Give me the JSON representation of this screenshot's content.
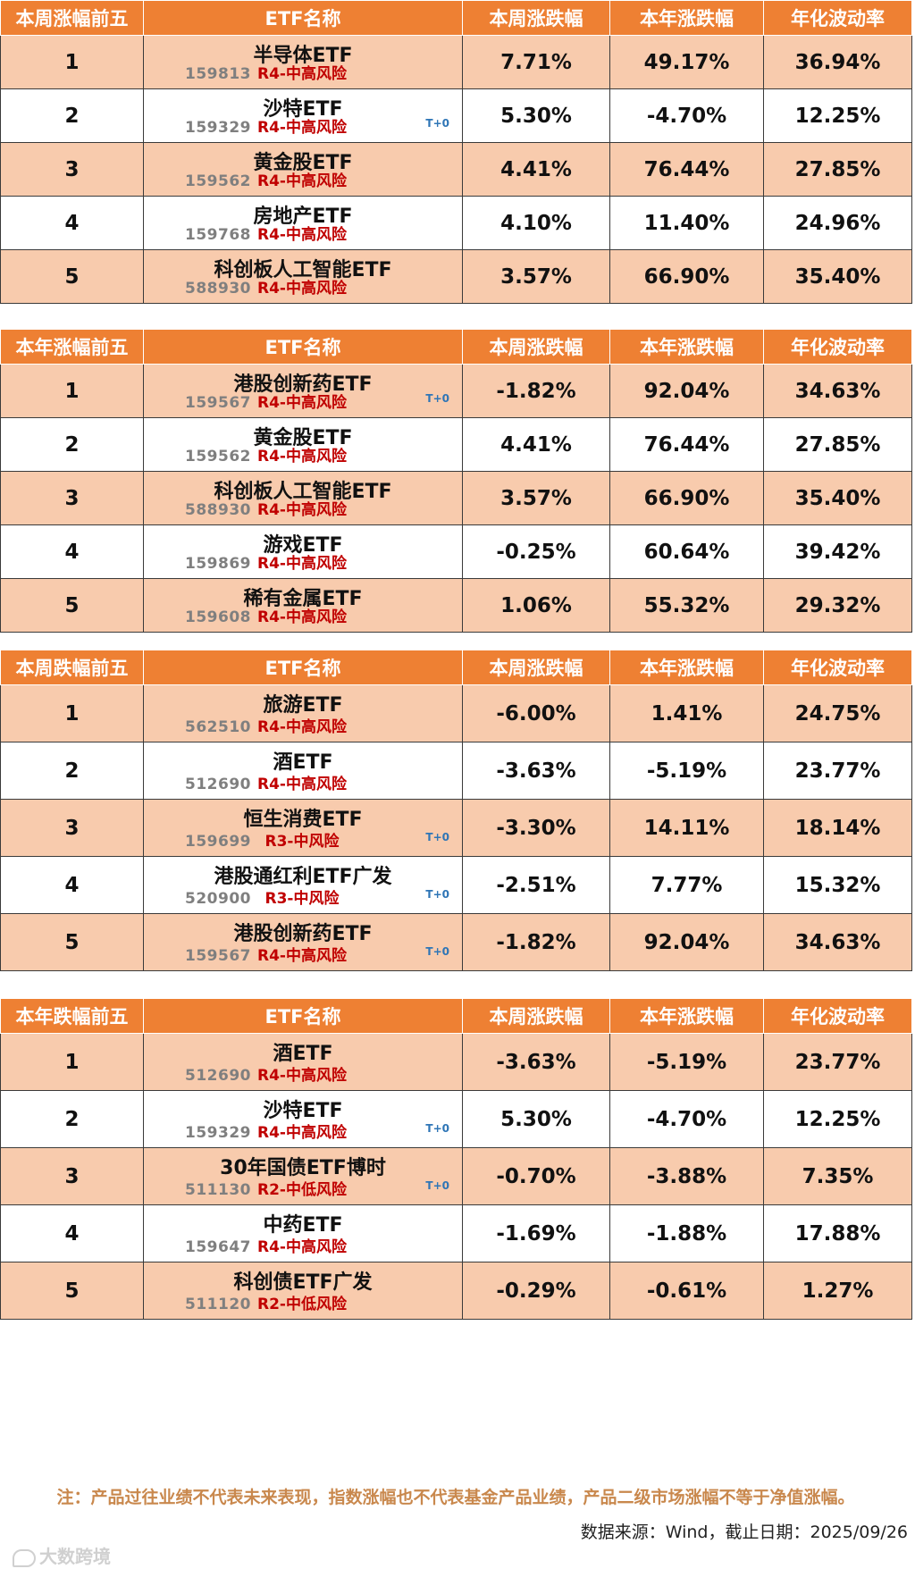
{
  "headers": [
    "ETF名称",
    "本周涨跌幅",
    "本年涨跌幅",
    "年化波动率"
  ],
  "tables": [
    {
      "title": "本周涨幅前五",
      "rows": [
        {
          "rank": "1",
          "name": "半导体ETF",
          "code": "159813",
          "risk": "R4-中高风险",
          "t0": "",
          "week": "7.71%",
          "week_dir": "up",
          "year": "49.17%",
          "year_dir": "up",
          "vol": "36.94%"
        },
        {
          "rank": "2",
          "name": "沙特ETF",
          "code": "159329",
          "risk": "R4-中高风险",
          "t0": "T+0",
          "week": "5.30%",
          "week_dir": "up",
          "year": "-4.70%",
          "year_dir": "down",
          "vol": "12.25%"
        },
        {
          "rank": "3",
          "name": "黄金股ETF",
          "code": "159562",
          "risk": "R4-中高风险",
          "t0": "",
          "week": "4.41%",
          "week_dir": "up",
          "year": "76.44%",
          "year_dir": "up",
          "vol": "27.85%"
        },
        {
          "rank": "4",
          "name": "房地产ETF",
          "code": "159768",
          "risk": "R4-中高风险",
          "t0": "",
          "week": "4.10%",
          "week_dir": "up",
          "year": "11.40%",
          "year_dir": "up",
          "vol": "24.96%"
        },
        {
          "rank": "5",
          "name": "科创板人工智能ETF",
          "code": "588930",
          "risk": "R4-中高风险",
          "t0": "",
          "week": "3.57%",
          "week_dir": "up",
          "year": "66.90%",
          "year_dir": "up",
          "vol": "35.40%"
        }
      ]
    },
    {
      "title": "本年涨幅前五",
      "rows": [
        {
          "rank": "1",
          "name": "港股创新药ETF",
          "code": "159567",
          "risk": "R4-中高风险",
          "t0": "T+0",
          "week": "-1.82%",
          "week_dir": "down",
          "year": "92.04%",
          "year_dir": "up",
          "vol": "34.63%"
        },
        {
          "rank": "2",
          "name": "黄金股ETF",
          "code": "159562",
          "risk": "R4-中高风险",
          "t0": "",
          "week": "4.41%",
          "week_dir": "up",
          "year": "76.44%",
          "year_dir": "up",
          "vol": "27.85%"
        },
        {
          "rank": "3",
          "name": "科创板人工智能ETF",
          "code": "588930",
          "risk": "R4-中高风险",
          "t0": "",
          "week": "3.57%",
          "week_dir": "up",
          "year": "66.90%",
          "year_dir": "up",
          "vol": "35.40%"
        },
        {
          "rank": "4",
          "name": "游戏ETF",
          "code": "159869",
          "risk": "R4-中高风险",
          "t0": "",
          "week": "-0.25%",
          "week_dir": "down",
          "year": "60.64%",
          "year_dir": "up",
          "vol": "39.42%"
        },
        {
          "rank": "5",
          "name": "稀有金属ETF",
          "code": "159608",
          "risk": "R4-中高风险",
          "t0": "",
          "week": "1.06%",
          "week_dir": "up",
          "year": "55.32%",
          "year_dir": "up",
          "vol": "29.32%"
        }
      ]
    },
    {
      "title": "本周跌幅前五",
      "rows": [
        {
          "rank": "1",
          "name": "旅游ETF",
          "code": "562510",
          "risk": "R4-中高风险",
          "t0": "",
          "week": "-6.00%",
          "week_dir": "down",
          "year": "1.41%",
          "year_dir": "up",
          "vol": "24.75%"
        },
        {
          "rank": "2",
          "name": "酒ETF",
          "code": "512690",
          "risk": "R4-中高风险",
          "t0": "",
          "week": "-3.63%",
          "week_dir": "down",
          "year": "-5.19%",
          "year_dir": "down",
          "vol": "23.77%"
        },
        {
          "rank": "3",
          "name": "恒生消费ETF",
          "code": "159699",
          "risk": "R3-中风险",
          "t0": "T+0",
          "week": "-3.30%",
          "week_dir": "down",
          "year": "14.11%",
          "year_dir": "up",
          "vol": "18.14%"
        },
        {
          "rank": "4",
          "name": "港股通红利ETF广发",
          "code": "520900",
          "risk": "R3-中风险",
          "t0": "T+0",
          "week": "-2.51%",
          "week_dir": "down",
          "year": "7.77%",
          "year_dir": "up",
          "vol": "15.32%"
        },
        {
          "rank": "5",
          "name": "港股创新药ETF",
          "code": "159567",
          "risk": "R4-中高风险",
          "t0": "T+0",
          "week": "-1.82%",
          "week_dir": "down",
          "year": "92.04%",
          "year_dir": "up",
          "vol": "34.63%"
        }
      ]
    },
    {
      "title": "本年跌幅前五",
      "rows": [
        {
          "rank": "1",
          "name": "酒ETF",
          "code": "512690",
          "risk": "R4-中高风险",
          "t0": "",
          "week": "-3.63%",
          "week_dir": "down",
          "year": "-5.19%",
          "year_dir": "down",
          "vol": "23.77%"
        },
        {
          "rank": "2",
          "name": "沙特ETF",
          "code": "159329",
          "risk": "R4-中高风险",
          "t0": "T+0",
          "week": "5.30%",
          "week_dir": "up",
          "year": "-4.70%",
          "year_dir": "down",
          "vol": "12.25%"
        },
        {
          "rank": "3",
          "name": "30年国债ETF博时",
          "code": "511130",
          "risk": "R2-中低风险",
          "t0": "T+0",
          "week": "-0.70%",
          "week_dir": "down",
          "year": "-3.88%",
          "year_dir": "down",
          "vol": "7.35%"
        },
        {
          "rank": "4",
          "name": "中药ETF",
          "code": "159647",
          "risk": "R4-中高风险",
          "t0": "",
          "week": "-1.69%",
          "week_dir": "down",
          "year": "-1.88%",
          "year_dir": "down",
          "vol": "17.88%"
        },
        {
          "rank": "5",
          "name": "科创债ETF广发",
          "code": "511120",
          "risk": "R2-中低风险",
          "t0": "",
          "week": "-0.29%",
          "week_dir": "down",
          "year": "-0.61%",
          "year_dir": "down",
          "vol": "1.27%"
        }
      ]
    }
  ],
  "footer": {
    "note": "注：产品过往业绩不代表未来表现，指数涨幅也不代表基金产品业绩，产品二级市场涨幅不等于净值涨幅。",
    "source": "数据来源：Wind，截止日期：2025/09/26",
    "watermark": "大数跨境"
  },
  "colors": {
    "header_bg": "#ee8033",
    "row_alt_bg": "#f8cbad",
    "up": "#e8121e",
    "down": "#18a04c",
    "risk": "#c00000",
    "t0": "#2e75b6"
  }
}
